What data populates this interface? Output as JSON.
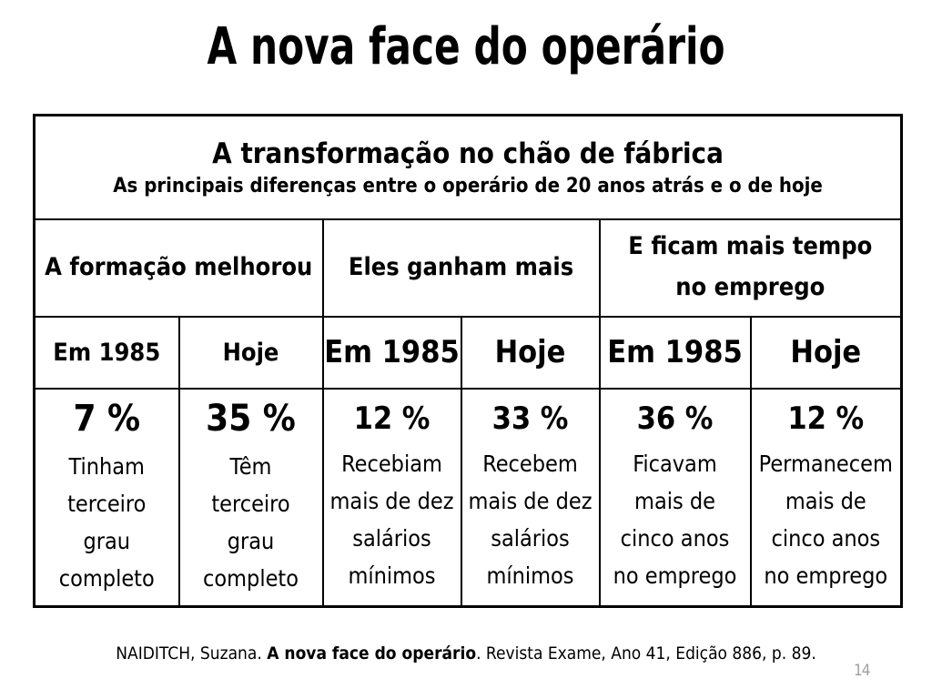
{
  "slide": {
    "title": "A nova face do operário",
    "page_number": "14"
  },
  "table": {
    "header": {
      "title": "A transformação no chão de fábrica",
      "subtitle": "As principais diferenças entre o operário de 20 anos atrás e o de hoje"
    },
    "groups": [
      {
        "label": "A formação melhorou"
      },
      {
        "label": "Eles ganham mais"
      },
      {
        "label": "E ficam mais tempo no emprego"
      }
    ],
    "years": [
      "Em 1985",
      "Hoje",
      "Em 1985",
      "Hoje",
      "Em 1985",
      "Hoje"
    ],
    "cells": [
      {
        "percent": "7 %",
        "lines": [
          "Tinham",
          "terceiro",
          "grau",
          "completo"
        ]
      },
      {
        "percent": "35 %",
        "lines": [
          "Têm",
          "terceiro",
          "grau",
          "completo"
        ]
      },
      {
        "percent": "12 %",
        "lines": [
          "Recebiam",
          "mais de dez",
          "salários",
          "mínimos"
        ]
      },
      {
        "percent": "33 %",
        "lines": [
          "Recebem",
          "mais de dez",
          "salários",
          "mínimos"
        ]
      },
      {
        "percent": "36 %",
        "lines": [
          "Ficavam",
          "mais de",
          "cinco anos",
          "no emprego"
        ]
      },
      {
        "percent": "12 %",
        "lines": [
          "Permanecem",
          "mais de",
          "cinco anos",
          "no emprego"
        ]
      }
    ]
  },
  "citation": {
    "author": "NAIDITCH, Suzana. ",
    "work": "A nova face do operário",
    "rest": ". Revista Exame, Ano 41, Edição 886, p. 89."
  }
}
